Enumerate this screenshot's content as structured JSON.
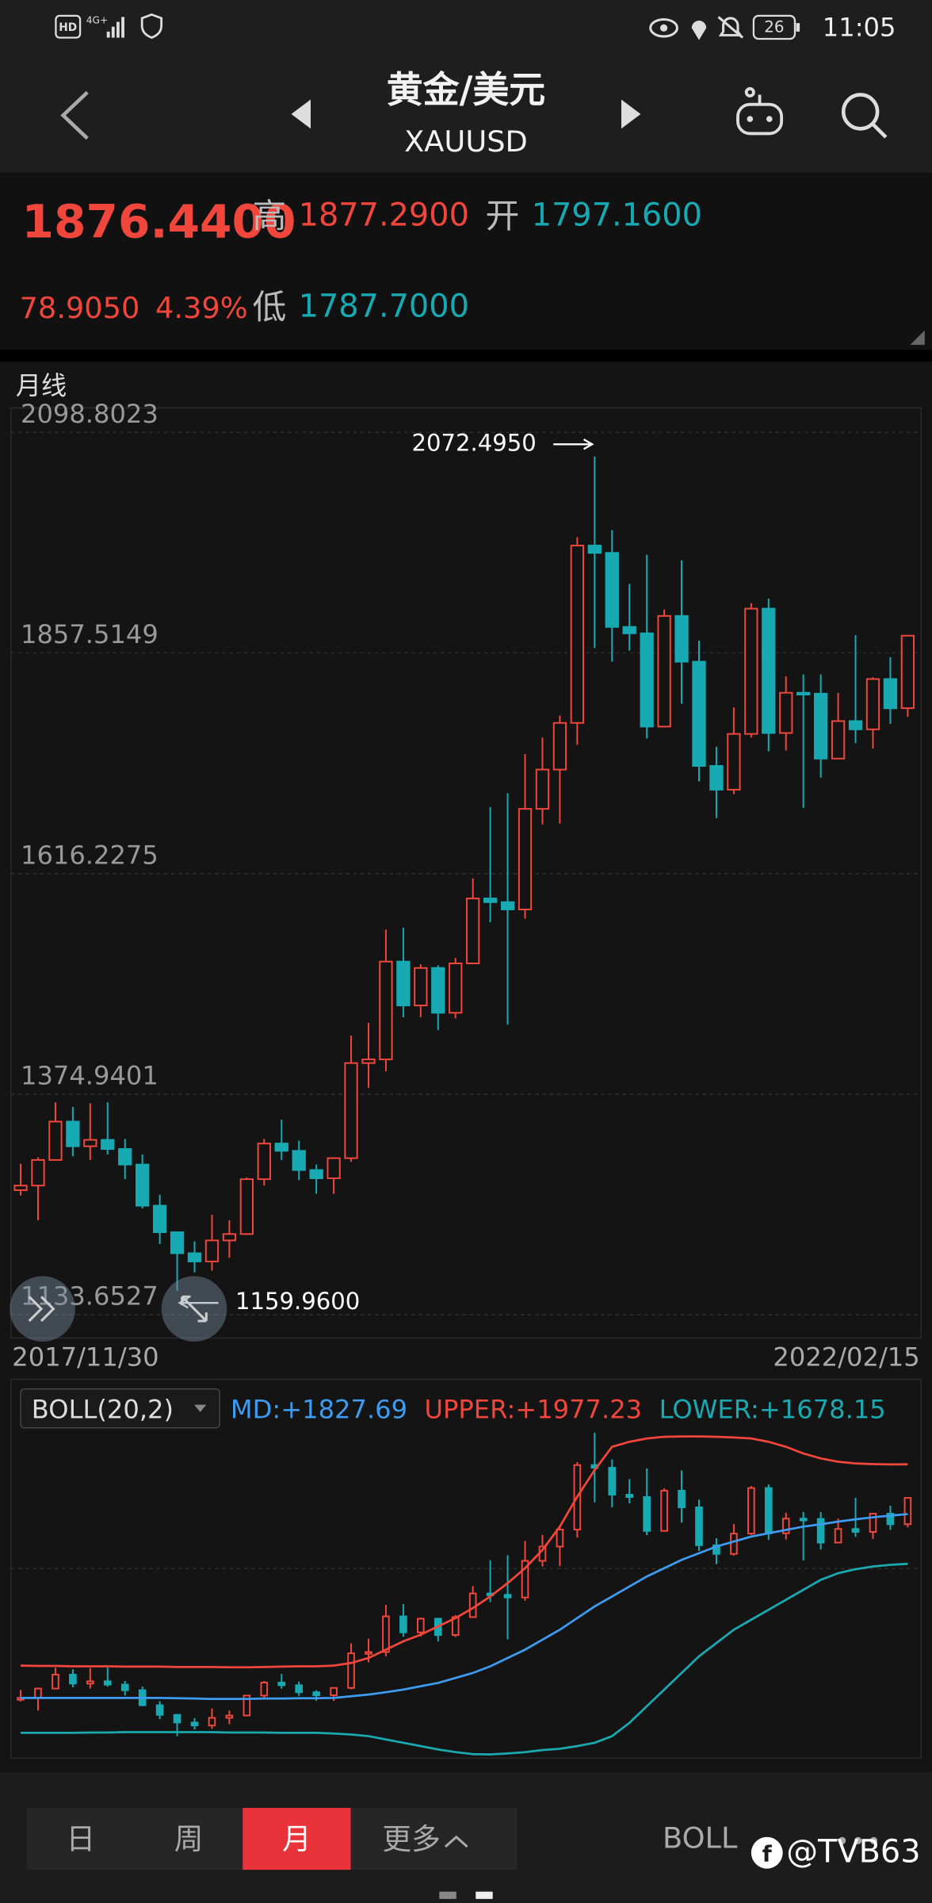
{
  "status_bar": {
    "hd": "HD",
    "network": "4G+",
    "battery": "26",
    "time": "11:05"
  },
  "header": {
    "title": "黄金/美元",
    "symbol": "XAUUSD"
  },
  "quote": {
    "price": "1876.4400",
    "high_label": "高",
    "high": "1877.2900",
    "open_label": "开",
    "open": "1797.1600",
    "change": "78.9050",
    "change_pct": "4.39%",
    "low_label": "低",
    "low": "1787.7000"
  },
  "chart_data": {
    "type": "candlestick",
    "period": "月线",
    "open": [
      1270,
      1275,
      1303,
      1345,
      1318,
      1325,
      1315,
      1298,
      1253,
      1224,
      1201,
      1192,
      1215,
      1222,
      1282,
      1321,
      1313,
      1292,
      1283,
      1305,
      1409,
      1413,
      1520,
      1472,
      1513,
      1464,
      1518,
      1589,
      1585,
      1577,
      1687,
      1730,
      1781,
      1975,
      1967,
      1886,
      1879,
      1777,
      1898,
      1848,
      1734,
      1708,
      1769,
      1906,
      1770,
      1814,
      1813,
      1742,
      1783,
      1774,
      1829,
      1797.16
    ],
    "high": [
      1299,
      1306,
      1366,
      1361,
      1365,
      1366,
      1326,
      1309,
      1265,
      1218,
      1214,
      1243,
      1237,
      1284,
      1326,
      1347,
      1324,
      1298,
      1306,
      1439,
      1453,
      1555,
      1557,
      1517,
      1516,
      1524,
      1611,
      1689,
      1704,
      1747,
      1765,
      1789,
      1984,
      2072.495,
      1992,
      1933,
      1965,
      1905,
      1959,
      1871,
      1755,
      1798,
      1912,
      1917,
      1832,
      1834,
      1834,
      1814,
      1877,
      1831,
      1853,
      1877.29
    ],
    "low": [
      1264,
      1237,
      1303,
      1307,
      1303,
      1309,
      1282,
      1250,
      1211,
      1159.96,
      1180,
      1182,
      1196,
      1221,
      1275,
      1303,
      1281,
      1266,
      1266,
      1301,
      1382,
      1400,
      1459,
      1459,
      1445,
      1458,
      1517,
      1563,
      1451,
      1567,
      1670,
      1671,
      1757,
      1863,
      1848,
      1860,
      1764,
      1776,
      1802,
      1717,
      1677,
      1703,
      1765,
      1750,
      1751,
      1688,
      1721,
      1746,
      1759,
      1753,
      1780,
      1787.7
    ],
    "close": [
      1275,
      1303,
      1345,
      1318,
      1325,
      1315,
      1298,
      1253,
      1224,
      1201,
      1192,
      1215,
      1222,
      1282,
      1321,
      1313,
      1292,
      1283,
      1305,
      1409,
      1413,
      1520,
      1472,
      1513,
      1464,
      1518,
      1589,
      1585,
      1577,
      1687,
      1730,
      1781,
      1975,
      1967,
      1886,
      1879,
      1777,
      1898,
      1848,
      1734,
      1708,
      1769,
      1906,
      1770,
      1814,
      1813,
      1742,
      1783,
      1774,
      1829,
      1797,
      1876.44
    ],
    "up_color": "#f0463c",
    "down_color": "#18aab3",
    "ylim": [
      1108.3,
      2125.5
    ],
    "yticks": [
      2098.8023,
      1857.5149,
      1616.2275,
      1374.9401,
      1133.6527
    ],
    "grid": true,
    "max_label": "2072.4950",
    "min_label": "1159.9600",
    "start_date": "2017/11/30",
    "end_date": "2022/02/15",
    "indicator": {
      "name": "BOLL(20,2)",
      "ylim": [
        1094,
        2233
      ],
      "series": [
        {
          "name": "MD:+1827.69",
          "color": "#3d9bf0",
          "values": [
            1275,
            1275,
            1275,
            1275,
            1275,
            1275,
            1275,
            1275,
            1275,
            1274,
            1273,
            1272,
            1272,
            1272,
            1273,
            1273,
            1274,
            1274,
            1275,
            1280,
            1285,
            1292,
            1300,
            1310,
            1320,
            1335,
            1350,
            1370,
            1395,
            1420,
            1450,
            1480,
            1515,
            1550,
            1580,
            1610,
            1640,
            1665,
            1690,
            1710,
            1730,
            1745,
            1760,
            1770,
            1780,
            1790,
            1797,
            1805,
            1812,
            1818,
            1823,
            1827.69
          ]
        },
        {
          "name": "UPPER:+1977.23",
          "color": "#f0463c",
          "values": [
            1372,
            1371,
            1371,
            1370,
            1370,
            1370,
            1369,
            1369,
            1369,
            1368,
            1368,
            1368,
            1367,
            1367,
            1368,
            1369,
            1370,
            1370,
            1372,
            1380,
            1395,
            1420,
            1445,
            1465,
            1490,
            1515,
            1545,
            1580,
            1620,
            1665,
            1720,
            1790,
            1880,
            1960,
            2030,
            2045,
            2055,
            2060,
            2061,
            2061,
            2060,
            2058,
            2055,
            2045,
            2030,
            2010,
            1995,
            1985,
            1980,
            1978,
            1977,
            1977.23
          ]
        },
        {
          "name": "LOWER:+1678.15",
          "color": "#1aa9b0",
          "values": [
            1170,
            1170,
            1170,
            1170,
            1171,
            1171,
            1172,
            1172,
            1172,
            1172,
            1172,
            1172,
            1171,
            1171,
            1171,
            1170,
            1170,
            1170,
            1168,
            1165,
            1160,
            1150,
            1140,
            1130,
            1120,
            1112,
            1106,
            1105,
            1108,
            1112,
            1118,
            1122,
            1130,
            1140,
            1160,
            1200,
            1250,
            1300,
            1350,
            1400,
            1440,
            1480,
            1510,
            1540,
            1570,
            1600,
            1630,
            1650,
            1662,
            1670,
            1675,
            1678.15
          ]
        }
      ]
    }
  },
  "tabs": [
    "日",
    "周",
    "月",
    "更多"
  ],
  "active_tab": 2,
  "indicator_button": "BOLL",
  "watermark": "@TVB63"
}
